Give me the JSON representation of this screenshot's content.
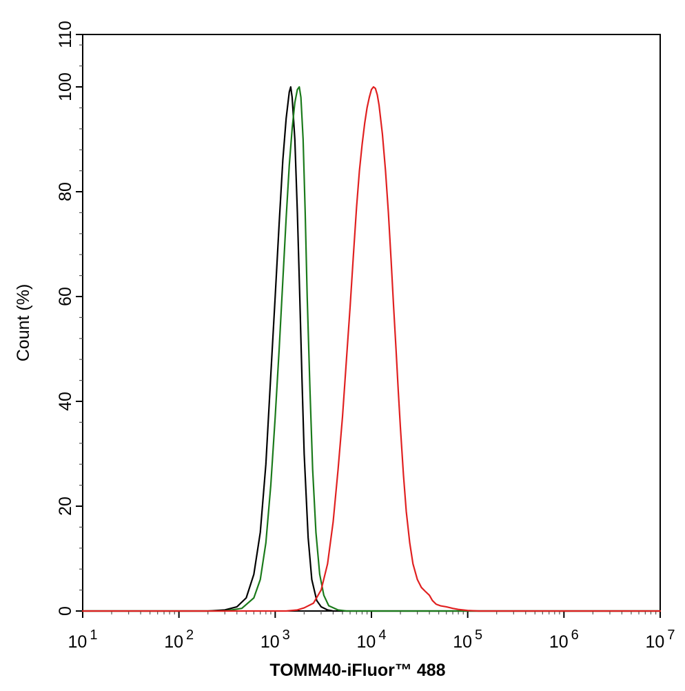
{
  "chart_data": {
    "type": "line",
    "title": "",
    "xlabel": "TOMM40-iFluor™ 488",
    "ylabel": "Count  (%)",
    "x_scale": "log",
    "xlim": [
      10,
      10000000
    ],
    "ylim": [
      0,
      110
    ],
    "grid": false,
    "x_ticks": [
      {
        "value": 10,
        "base": "10",
        "exp": "1"
      },
      {
        "value": 100,
        "base": "10",
        "exp": "2"
      },
      {
        "value": 1000,
        "base": "10",
        "exp": "3"
      },
      {
        "value": 10000,
        "base": "10",
        "exp": "4"
      },
      {
        "value": 100000,
        "base": "10",
        "exp": "5"
      },
      {
        "value": 1000000,
        "base": "10",
        "exp": "6"
      },
      {
        "value": 10000000,
        "base": "10",
        "exp": "7"
      }
    ],
    "y_ticks": [
      {
        "value": 0,
        "label": "0"
      },
      {
        "value": 20,
        "label": "20"
      },
      {
        "value": 40,
        "label": "40"
      },
      {
        "value": 60,
        "label": "60"
      },
      {
        "value": 80,
        "label": "80"
      },
      {
        "value": 100,
        "label": "100"
      },
      {
        "value": 110,
        "label": "110"
      }
    ],
    "series": [
      {
        "color": "#000000",
        "points": [
          [
            10,
            0
          ],
          [
            200,
            0
          ],
          [
            300,
            0.2
          ],
          [
            400,
            0.8
          ],
          [
            500,
            2.5
          ],
          [
            600,
            7
          ],
          [
            700,
            15
          ],
          [
            800,
            28
          ],
          [
            900,
            45
          ],
          [
            1000,
            60
          ],
          [
            1100,
            74
          ],
          [
            1200,
            86
          ],
          [
            1300,
            94
          ],
          [
            1400,
            99
          ],
          [
            1450,
            100
          ],
          [
            1500,
            98
          ],
          [
            1600,
            90
          ],
          [
            1700,
            76
          ],
          [
            1800,
            60
          ],
          [
            1900,
            44
          ],
          [
            2000,
            30
          ],
          [
            2200,
            14
          ],
          [
            2400,
            6
          ],
          [
            2700,
            2
          ],
          [
            3000,
            0.8
          ],
          [
            3500,
            0.2
          ],
          [
            4000,
            0
          ],
          [
            10000000,
            0
          ]
        ]
      },
      {
        "color": "#1a7a1a",
        "points": [
          [
            10,
            0
          ],
          [
            300,
            0
          ],
          [
            450,
            0.5
          ],
          [
            600,
            2.5
          ],
          [
            700,
            6
          ],
          [
            800,
            13
          ],
          [
            900,
            24
          ],
          [
            1000,
            37
          ],
          [
            1100,
            50
          ],
          [
            1200,
            63
          ],
          [
            1300,
            75
          ],
          [
            1400,
            85
          ],
          [
            1500,
            92
          ],
          [
            1600,
            97
          ],
          [
            1700,
            99.5
          ],
          [
            1780,
            100
          ],
          [
            1850,
            98
          ],
          [
            1950,
            90
          ],
          [
            2050,
            76
          ],
          [
            2150,
            60
          ],
          [
            2300,
            42
          ],
          [
            2450,
            27
          ],
          [
            2650,
            15
          ],
          [
            2900,
            7
          ],
          [
            3200,
            3
          ],
          [
            3600,
            1
          ],
          [
            4500,
            0.2
          ],
          [
            5500,
            0
          ],
          [
            10000000,
            0
          ]
        ]
      },
      {
        "color": "#e02020",
        "points": [
          [
            10,
            0
          ],
          [
            1300,
            0
          ],
          [
            1700,
            0.2
          ],
          [
            2000,
            0.6
          ],
          [
            2500,
            1.5
          ],
          [
            3000,
            4
          ],
          [
            3500,
            9
          ],
          [
            4000,
            17
          ],
          [
            4500,
            27
          ],
          [
            5000,
            37
          ],
          [
            5500,
            48
          ],
          [
            6000,
            58
          ],
          [
            6500,
            68
          ],
          [
            7000,
            77
          ],
          [
            7500,
            84
          ],
          [
            8000,
            89
          ],
          [
            8500,
            93
          ],
          [
            9000,
            96
          ],
          [
            9500,
            98
          ],
          [
            10000,
            99.5
          ],
          [
            10500,
            100
          ],
          [
            11000,
            99.7
          ],
          [
            11500,
            98.5
          ],
          [
            12000,
            96.5
          ],
          [
            13000,
            91
          ],
          [
            14000,
            84
          ],
          [
            15000,
            76
          ],
          [
            16000,
            67
          ],
          [
            17000,
            58
          ],
          [
            18000,
            50
          ],
          [
            19000,
            42
          ],
          [
            20000,
            35
          ],
          [
            21500,
            26
          ],
          [
            23000,
            19
          ],
          [
            25000,
            13
          ],
          [
            27000,
            9
          ],
          [
            30000,
            6
          ],
          [
            33000,
            4.5
          ],
          [
            36000,
            3.8
          ],
          [
            40000,
            3
          ],
          [
            43000,
            2
          ],
          [
            47000,
            1.3
          ],
          [
            52000,
            1
          ],
          [
            60000,
            0.8
          ],
          [
            70000,
            0.5
          ],
          [
            80000,
            0.3
          ],
          [
            100000,
            0.1
          ],
          [
            130000,
            0
          ],
          [
            10000000,
            0
          ]
        ]
      }
    ]
  }
}
